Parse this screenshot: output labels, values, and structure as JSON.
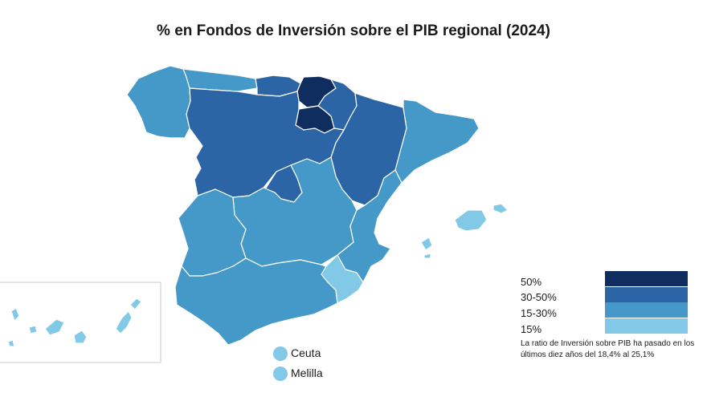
{
  "title": "% en Fondos de Inversión sobre el PIB regional (2024)",
  "colors": {
    "c50": "#0f2d5e",
    "c30_50": "#2b65a6",
    "c15_30": "#4599c9",
    "c15": "#82c9e8",
    "border": "#ffffff",
    "inset_frame": "#c8c8c8"
  },
  "legend": [
    {
      "label": "50%",
      "color": "#0f2d5e"
    },
    {
      "label": "30-50%",
      "color": "#2b65a6"
    },
    {
      "label": "15-30%",
      "color": "#4599c9"
    },
    {
      "label": "15%",
      "color": "#82c9e8"
    }
  ],
  "note": "La ratio de Inversión sobre PIB ha pasado en los últimos diez años del 18,4% al 25,1%",
  "cities": [
    {
      "label": "Ceuta",
      "category": "15%"
    },
    {
      "label": "Melilla",
      "category": "15%"
    }
  ],
  "regions": [
    {
      "id": "galicia",
      "category": "15-30%"
    },
    {
      "id": "asturias",
      "category": "15-30%"
    },
    {
      "id": "cantabria",
      "category": "30-50%"
    },
    {
      "id": "pais-vasco",
      "category": "50%"
    },
    {
      "id": "navarra",
      "category": "30-50%"
    },
    {
      "id": "la-rioja",
      "category": "50%"
    },
    {
      "id": "aragon",
      "category": "30-50%"
    },
    {
      "id": "cataluna",
      "category": "15-30%"
    },
    {
      "id": "castilla-y-leon",
      "category": "30-50%"
    },
    {
      "id": "madrid",
      "category": "30-50%"
    },
    {
      "id": "castilla-la-mancha",
      "category": "15-30%"
    },
    {
      "id": "comunidad-valenciana",
      "category": "15-30%"
    },
    {
      "id": "extremadura",
      "category": "15-30%"
    },
    {
      "id": "andalucia",
      "category": "15-30%"
    },
    {
      "id": "murcia",
      "category": "15%"
    },
    {
      "id": "baleares",
      "category": "15%"
    },
    {
      "id": "canarias",
      "category": "15%"
    }
  ]
}
